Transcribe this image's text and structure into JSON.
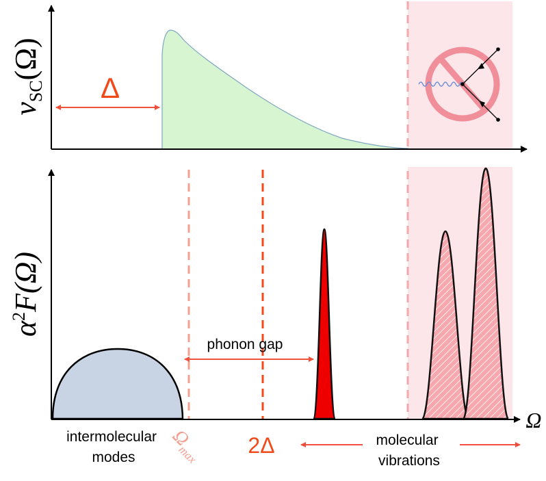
{
  "top_panel": {
    "ylabel": "ν",
    "ylabel_sub": "SC",
    "ylabel_arg": "(Ω)",
    "gap_symbol": "Δ",
    "shaded_region": "molecular vibrations region",
    "forbidden_icon": "no-scattering-icon"
  },
  "bottom_panel": {
    "ylabel_alpha": "α",
    "ylabel_exp": "2",
    "ylabel_F": "F(Ω)",
    "xlabel": "Ω",
    "omega_max_main": "Ω",
    "omega_max_sub": "max",
    "two_delta": "2Δ",
    "phonon_gap_label": "phonon gap",
    "intermolecular_line1": "intermolecular",
    "intermolecular_line2": "modes",
    "molecular_line1": "molecular",
    "molecular_line2": "vibrations"
  },
  "colors": {
    "axis": "#000000",
    "arrow_red": "#f0503c",
    "delta_orange": "#f04a1a",
    "omega_max_pink": "#f4a090",
    "shade_pink": "#fde6ea",
    "green_fill": "#d8f5d2",
    "blue_fill": "#c8d4e4",
    "peak_red": "#ee0000",
    "hatched_fill": "#f7b0b4"
  }
}
